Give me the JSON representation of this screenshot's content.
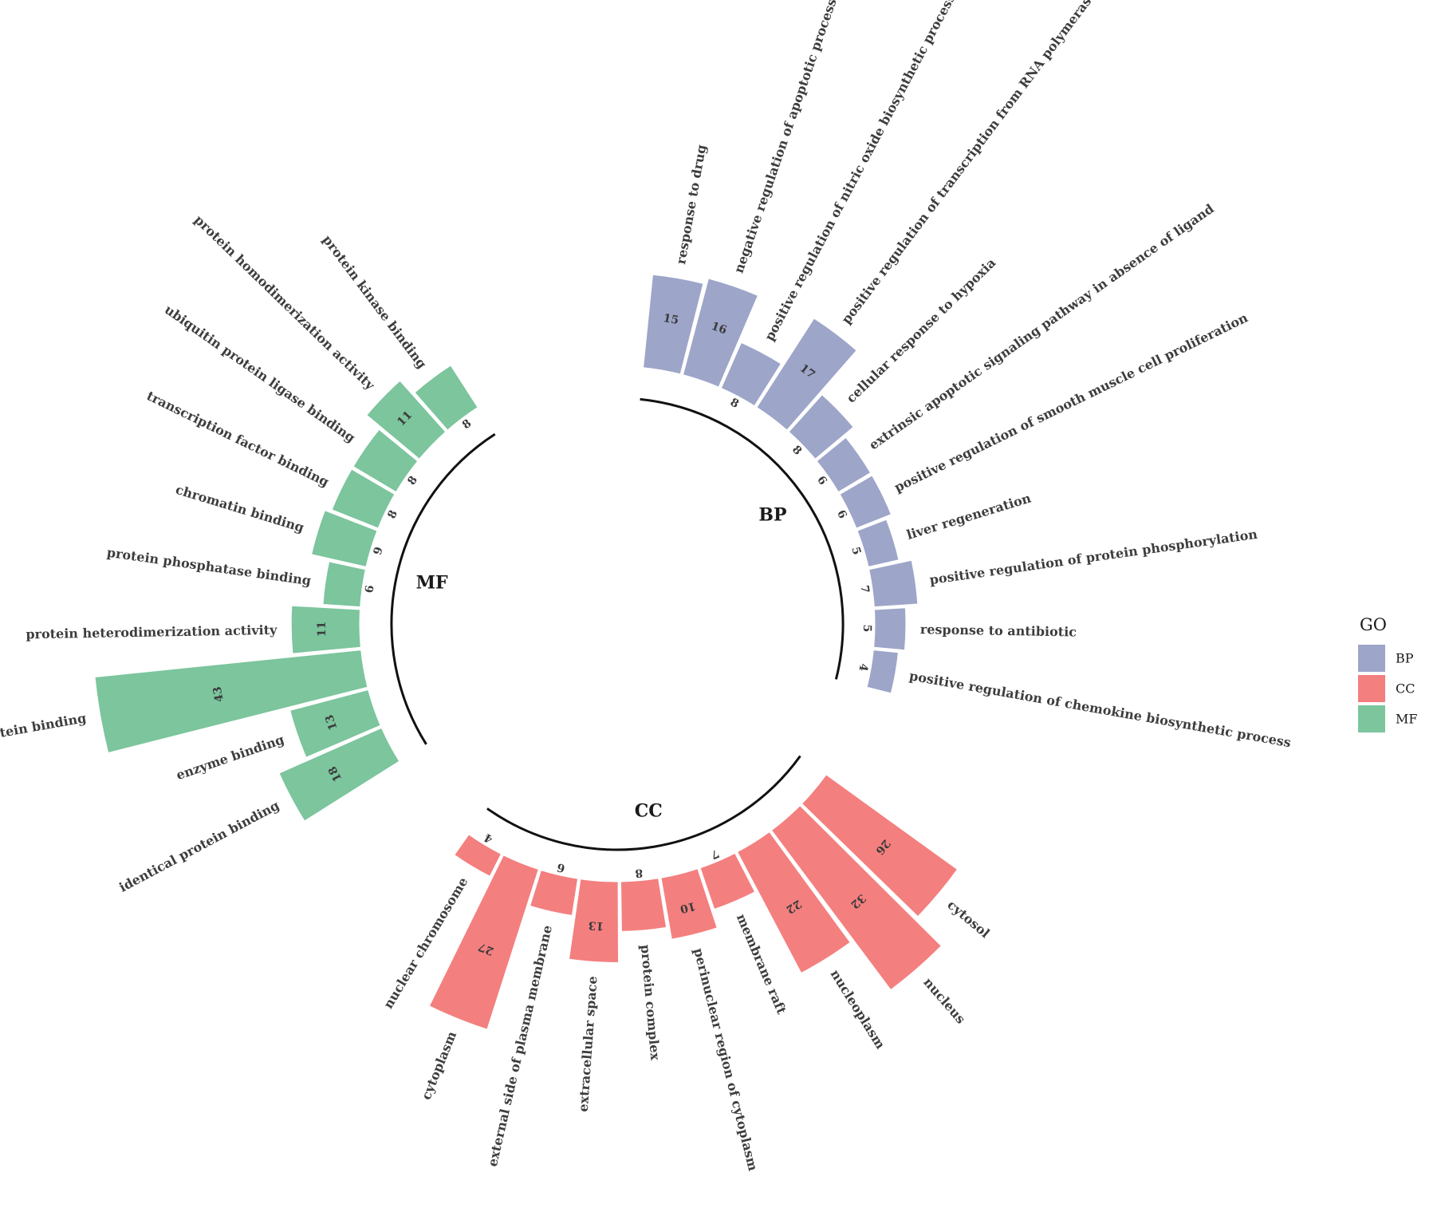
{
  "chart_data": {
    "type": "bar",
    "layout": "circular",
    "title": "",
    "legend": {
      "title": "GO",
      "position": "right",
      "entries": [
        {
          "key": "BP",
          "color": "#9da5c9"
        },
        {
          "key": "CC",
          "color": "#f47f7f"
        },
        {
          "key": "MF",
          "color": "#7cc59d"
        }
      ]
    },
    "groups": [
      {
        "name": "BP",
        "label": "BP",
        "color": "#9da5c9"
      },
      {
        "name": "CC",
        "label": "CC",
        "color": "#f47f7f"
      },
      {
        "name": "MF",
        "label": "MF",
        "color": "#7cc59d"
      }
    ],
    "bars": [
      {
        "label": "response to drug",
        "value": 15,
        "group": "BP",
        "angle": 10
      },
      {
        "label": "negative regulation of apoptotic process",
        "value": 16,
        "group": "BP",
        "angle": 19
      },
      {
        "label": "positive regulation of nitric oxide biosynthetic process",
        "value": 8,
        "group": "BP",
        "angle": 28
      },
      {
        "label": "positive regulation of transcription from RNA polymerase II promoter",
        "value": 17,
        "group": "BP",
        "angle": 37
      },
      {
        "label": "cellular response to hypoxia",
        "value": 8,
        "group": "BP",
        "angle": 46
      },
      {
        "label": "extrinsic apoptotic signaling pathway in absence of ligand",
        "value": 6,
        "group": "BP",
        "angle": 55
      },
      {
        "label": "positive regulation of smooth muscle cell proliferation",
        "value": 6,
        "group": "BP",
        "angle": 64
      },
      {
        "label": "liver regeneration",
        "value": 5,
        "group": "BP",
        "angle": 73
      },
      {
        "label": "positive regulation of protein phosphorylation",
        "value": 7,
        "group": "BP",
        "angle": 82
      },
      {
        "label": "response to antibiotic",
        "value": 5,
        "group": "BP",
        "angle": 91
      },
      {
        "label": "positive regulation of chemokine biosynthetic process",
        "value": 4,
        "group": "BP",
        "angle": 100
      },
      {
        "label": "cytosol",
        "value": 26,
        "group": "CC",
        "angle": 130
      },
      {
        "label": "nucleus",
        "value": 32,
        "group": "CC",
        "angle": 139
      },
      {
        "label": "nucleoplasm",
        "value": 22,
        "group": "CC",
        "angle": 148
      },
      {
        "label": "membrane raft",
        "value": 7,
        "group": "CC",
        "angle": 157
      },
      {
        "label": "perinuclear region of cytoplasm",
        "value": 10,
        "group": "CC",
        "angle": 166
      },
      {
        "label": "protein complex",
        "value": 8,
        "group": "CC",
        "angle": 175
      },
      {
        "label": "extracellular space",
        "value": 13,
        "group": "CC",
        "angle": 184
      },
      {
        "label": "external side of plasma membrane",
        "value": 6,
        "group": "CC",
        "angle": 193
      },
      {
        "label": "cytoplasm",
        "value": 27,
        "group": "CC",
        "angle": 202
      },
      {
        "label": "nuclear chromosome",
        "value": 4,
        "group": "CC",
        "angle": 211
      },
      {
        "label": "identical protein binding",
        "value": 18,
        "group": "MF",
        "angle": 242
      },
      {
        "label": "enzyme binding",
        "value": 13,
        "group": "MF",
        "angle": 251
      },
      {
        "label": "protein binding",
        "value": 43,
        "group": "MF",
        "angle": 260
      },
      {
        "label": "protein heterodimerization activity",
        "value": 11,
        "group": "MF",
        "angle": 269
      },
      {
        "label": "protein phosphatase binding",
        "value": 6,
        "group": "MF",
        "angle": 278
      },
      {
        "label": "chromatin binding",
        "value": 9,
        "group": "MF",
        "angle": 287
      },
      {
        "label": "transcription factor binding",
        "value": 8,
        "group": "MF",
        "angle": 296
      },
      {
        "label": "ubiquitin protein ligase binding",
        "value": 8,
        "group": "MF",
        "angle": 305
      },
      {
        "label": "protein homodimerization activity",
        "value": 11,
        "group": "MF",
        "angle": 314
      },
      {
        "label": "protein kinase binding",
        "value": 8,
        "group": "MF",
        "angle": 323
      }
    ]
  }
}
